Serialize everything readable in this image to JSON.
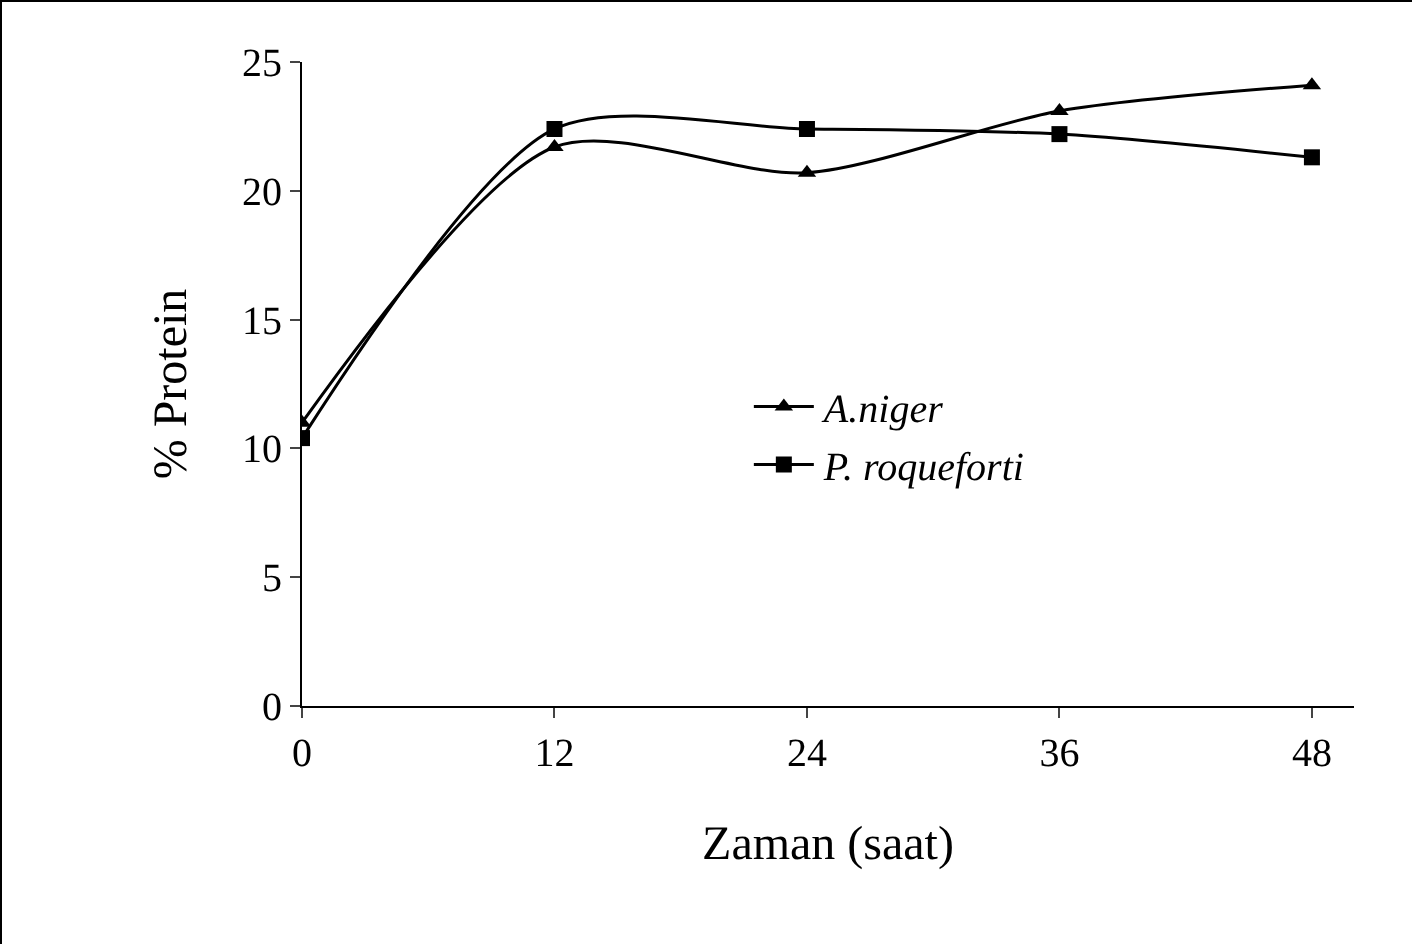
{
  "chart_data": {
    "type": "line",
    "xlabel": "Zaman (saat)",
    "ylabel": "% Protein",
    "x": [
      0,
      12,
      24,
      36,
      48
    ],
    "series": [
      {
        "name": "A.niger",
        "color": "#000000",
        "marker": "triangle",
        "values": [
          11,
          21.7,
          20.7,
          23.1,
          24.1
        ]
      },
      {
        "name": "P. roqueforti",
        "color": "#000000",
        "marker": "square",
        "values": [
          10.4,
          22.4,
          22.4,
          22.2,
          21.3
        ]
      }
    ],
    "xlim": [
      0,
      50
    ],
    "xticks": [
      0,
      12,
      24,
      36,
      48
    ],
    "ylim": [
      0,
      25
    ],
    "yticks": [
      0,
      5,
      10,
      15,
      20,
      25
    ],
    "grid": false,
    "legend": "center",
    "line_style": "solid"
  }
}
